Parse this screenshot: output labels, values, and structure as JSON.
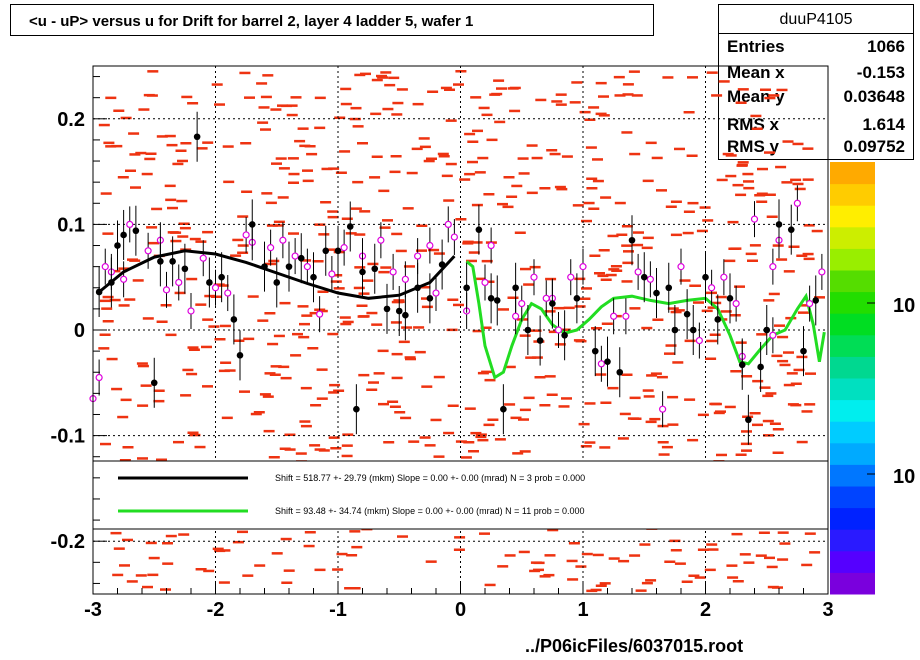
{
  "title": "<u - uP>       versus   u for Drift for barrel 2, layer 4 ladder 5, wafer 1",
  "footer": "../P06icFiles/6037015.root",
  "stats": {
    "name": "duuP4105",
    "rows": [
      {
        "key": "Entries",
        "value": "1066"
      },
      {
        "key": "Mean x",
        "value": "-0.153"
      },
      {
        "key": "Mean y",
        "value": "0.03648"
      },
      {
        "key": "RMS x",
        "value": "1.614"
      },
      {
        "key": "RMS y",
        "value": "0.09752"
      }
    ]
  },
  "colors": {
    "scatter": "#ee3311",
    "profile": "#000000",
    "open_marker": "#dd00dd",
    "fit_left": "#000000",
    "fit_right": "#22dd22",
    "grid": "#000000"
  },
  "chart_data": {
    "type": "scatter",
    "xlim": [
      -3,
      3
    ],
    "ylim": [
      -0.25,
      0.25
    ],
    "x_ticks": [
      "-3",
      "-2",
      "-1",
      "0",
      "1",
      "2",
      "3"
    ],
    "y_ticks": [
      "-0.2",
      "-0.1",
      "0",
      "0.1",
      "0.2"
    ],
    "grid": true,
    "colorbar_labels": [
      "10",
      "10"
    ],
    "legend": [
      {
        "color": "#000000",
        "text": "Shift =   518.77 +- 29.79 (mkm) Slope =     0.00 +- 0.00 (mrad)  N = 3 prob = 0.000"
      },
      {
        "color": "#22dd22",
        "text": "Shift =    93.48 +- 34.74 (mkm) Slope =     0.00 +- 0.00 (mrad)  N = 11 prob = 0.000"
      }
    ],
    "profile": [
      {
        "x": -2.95,
        "y": 0.036
      },
      {
        "x": -2.85,
        "y": 0.045
      },
      {
        "x": -2.8,
        "y": 0.08
      },
      {
        "x": -2.75,
        "y": 0.09
      },
      {
        "x": -2.65,
        "y": 0.094
      },
      {
        "x": -2.5,
        "y": -0.05
      },
      {
        "x": -2.45,
        "y": 0.065
      },
      {
        "x": -2.35,
        "y": 0.065
      },
      {
        "x": -2.25,
        "y": 0.058
      },
      {
        "x": -2.15,
        "y": 0.183
      },
      {
        "x": -2.05,
        "y": 0.045
      },
      {
        "x": -1.95,
        "y": 0.05
      },
      {
        "x": -1.85,
        "y": 0.01
      },
      {
        "x": -1.8,
        "y": -0.024
      },
      {
        "x": -1.7,
        "y": 0.1
      },
      {
        "x": -1.6,
        "y": 0.06
      },
      {
        "x": -1.5,
        "y": 0.045
      },
      {
        "x": -1.4,
        "y": 0.06
      },
      {
        "x": -1.3,
        "y": 0.068
      },
      {
        "x": -1.2,
        "y": 0.05
      },
      {
        "x": -1.1,
        "y": 0.075
      },
      {
        "x": -1.0,
        "y": 0.075
      },
      {
        "x": -0.9,
        "y": 0.098
      },
      {
        "x": -0.85,
        "y": -0.075
      },
      {
        "x": -0.8,
        "y": 0.055
      },
      {
        "x": -0.7,
        "y": 0.058
      },
      {
        "x": -0.6,
        "y": 0.02
      },
      {
        "x": -0.5,
        "y": 0.018
      },
      {
        "x": -0.45,
        "y": 0.014
      },
      {
        "x": -0.35,
        "y": 0.04
      },
      {
        "x": -0.25,
        "y": 0.03
      },
      {
        "x": -0.15,
        "y": 0.062
      },
      {
        "x": 0.05,
        "y": 0.04
      },
      {
        "x": 0.15,
        "y": 0.095
      },
      {
        "x": 0.25,
        "y": 0.03
      },
      {
        "x": 0.3,
        "y": 0.028
      },
      {
        "x": 0.35,
        "y": -0.075
      },
      {
        "x": 0.45,
        "y": 0.04
      },
      {
        "x": 0.55,
        "y": 0.0
      },
      {
        "x": 0.65,
        "y": -0.01
      },
      {
        "x": 0.75,
        "y": 0.025
      },
      {
        "x": 0.85,
        "y": -0.005
      },
      {
        "x": 0.95,
        "y": 0.03
      },
      {
        "x": 1.1,
        "y": -0.02
      },
      {
        "x": 1.2,
        "y": -0.03
      },
      {
        "x": 1.3,
        "y": -0.04
      },
      {
        "x": 1.4,
        "y": 0.085
      },
      {
        "x": 1.5,
        "y": 0.05
      },
      {
        "x": 1.6,
        "y": 0.035
      },
      {
        "x": 1.7,
        "y": 0.04
      },
      {
        "x": 1.75,
        "y": 0.0
      },
      {
        "x": 1.85,
        "y": 0.015
      },
      {
        "x": 1.9,
        "y": 0.0
      },
      {
        "x": 2.0,
        "y": 0.05
      },
      {
        "x": 2.1,
        "y": 0.01
      },
      {
        "x": 2.2,
        "y": 0.03
      },
      {
        "x": 2.3,
        "y": -0.033
      },
      {
        "x": 2.35,
        "y": -0.085
      },
      {
        "x": 2.45,
        "y": -0.035
      },
      {
        "x": 2.5,
        "y": 0.0
      },
      {
        "x": 2.6,
        "y": 0.1
      },
      {
        "x": 2.7,
        "y": 0.095
      },
      {
        "x": 2.8,
        "y": -0.02
      },
      {
        "x": 2.9,
        "y": 0.028
      }
    ],
    "open_points": [
      {
        "x": -3.0,
        "y": -0.065
      },
      {
        "x": -2.95,
        "y": -0.045
      },
      {
        "x": -2.9,
        "y": 0.06
      },
      {
        "x": -2.85,
        "y": 0.055
      },
      {
        "x": -2.75,
        "y": 0.048
      },
      {
        "x": -2.7,
        "y": 0.1
      },
      {
        "x": -2.55,
        "y": 0.075
      },
      {
        "x": -2.45,
        "y": 0.085
      },
      {
        "x": -2.4,
        "y": 0.038
      },
      {
        "x": -2.3,
        "y": 0.045
      },
      {
        "x": -2.2,
        "y": 0.018
      },
      {
        "x": -2.1,
        "y": 0.068
      },
      {
        "x": -2.0,
        "y": 0.04
      },
      {
        "x": -1.9,
        "y": 0.035
      },
      {
        "x": -1.75,
        "y": 0.09
      },
      {
        "x": -1.7,
        "y": 0.083
      },
      {
        "x": -1.55,
        "y": 0.078
      },
      {
        "x": -1.45,
        "y": 0.085
      },
      {
        "x": -1.35,
        "y": 0.07
      },
      {
        "x": -1.25,
        "y": 0.06
      },
      {
        "x": -1.15,
        "y": 0.015
      },
      {
        "x": -1.05,
        "y": 0.053
      },
      {
        "x": -0.95,
        "y": 0.078
      },
      {
        "x": -0.8,
        "y": 0.07
      },
      {
        "x": -0.65,
        "y": 0.085
      },
      {
        "x": -0.55,
        "y": 0.055
      },
      {
        "x": -0.45,
        "y": 0.048
      },
      {
        "x": -0.35,
        "y": 0.07
      },
      {
        "x": -0.25,
        "y": 0.08
      },
      {
        "x": -0.2,
        "y": 0.035
      },
      {
        "x": -0.1,
        "y": 0.1
      },
      {
        "x": -0.05,
        "y": 0.088
      },
      {
        "x": 0.05,
        "y": 0.018
      },
      {
        "x": 0.2,
        "y": 0.045
      },
      {
        "x": 0.25,
        "y": 0.08
      },
      {
        "x": 0.45,
        "y": 0.013
      },
      {
        "x": 0.5,
        "y": 0.025
      },
      {
        "x": 0.6,
        "y": 0.05
      },
      {
        "x": 0.7,
        "y": 0.03
      },
      {
        "x": 0.75,
        "y": 0.03
      },
      {
        "x": 0.8,
        "y": 0.0
      },
      {
        "x": 0.9,
        "y": 0.05
      },
      {
        "x": 1.0,
        "y": 0.06
      },
      {
        "x": 1.15,
        "y": -0.032
      },
      {
        "x": 1.25,
        "y": 0.013
      },
      {
        "x": 1.35,
        "y": 0.013
      },
      {
        "x": 1.45,
        "y": 0.055
      },
      {
        "x": 1.55,
        "y": 0.048
      },
      {
        "x": 1.65,
        "y": -0.075
      },
      {
        "x": 1.8,
        "y": 0.06
      },
      {
        "x": 1.95,
        "y": -0.01
      },
      {
        "x": 2.05,
        "y": 0.04
      },
      {
        "x": 2.15,
        "y": 0.05
      },
      {
        "x": 2.25,
        "y": 0.025
      },
      {
        "x": 2.3,
        "y": -0.025
      },
      {
        "x": 2.4,
        "y": 0.105
      },
      {
        "x": 2.55,
        "y": -0.005
      },
      {
        "x": 2.55,
        "y": 0.06
      },
      {
        "x": 2.6,
        "y": 0.085
      },
      {
        "x": 2.75,
        "y": 0.12
      },
      {
        "x": 2.85,
        "y": 0.025
      },
      {
        "x": 2.95,
        "y": 0.055
      }
    ],
    "fit_left": [
      {
        "x": -2.95,
        "y": 0.036
      },
      {
        "x": -2.75,
        "y": 0.055
      },
      {
        "x": -2.5,
        "y": 0.069
      },
      {
        "x": -2.25,
        "y": 0.075
      },
      {
        "x": -2.0,
        "y": 0.072
      },
      {
        "x": -1.75,
        "y": 0.064
      },
      {
        "x": -1.5,
        "y": 0.054
      },
      {
        "x": -1.25,
        "y": 0.044
      },
      {
        "x": -1.0,
        "y": 0.035
      },
      {
        "x": -0.75,
        "y": 0.03
      },
      {
        "x": -0.5,
        "y": 0.033
      },
      {
        "x": -0.25,
        "y": 0.045
      },
      {
        "x": -0.05,
        "y": 0.07
      }
    ],
    "fit_right": [
      {
        "x": 0.05,
        "y": 0.065
      },
      {
        "x": 0.1,
        "y": 0.06
      },
      {
        "x": 0.15,
        "y": 0.025
      },
      {
        "x": 0.2,
        "y": -0.015
      },
      {
        "x": 0.28,
        "y": -0.045
      },
      {
        "x": 0.35,
        "y": -0.04
      },
      {
        "x": 0.42,
        "y": -0.015
      },
      {
        "x": 0.5,
        "y": 0.01
      },
      {
        "x": 0.58,
        "y": 0.025
      },
      {
        "x": 0.66,
        "y": 0.02
      },
      {
        "x": 0.75,
        "y": 0.005
      },
      {
        "x": 0.85,
        "y": -0.003
      },
      {
        "x": 0.95,
        "y": 0.0
      },
      {
        "x": 1.05,
        "y": 0.01
      },
      {
        "x": 1.15,
        "y": 0.022
      },
      {
        "x": 1.25,
        "y": 0.03
      },
      {
        "x": 1.4,
        "y": 0.032
      },
      {
        "x": 1.55,
        "y": 0.028
      },
      {
        "x": 1.7,
        "y": 0.025
      },
      {
        "x": 1.85,
        "y": 0.028
      },
      {
        "x": 2.0,
        "y": 0.03
      },
      {
        "x": 2.1,
        "y": 0.02
      },
      {
        "x": 2.2,
        "y": -0.005
      },
      {
        "x": 2.28,
        "y": -0.03
      },
      {
        "x": 2.35,
        "y": -0.032
      },
      {
        "x": 2.45,
        "y": -0.018
      },
      {
        "x": 2.55,
        "y": -0.005
      },
      {
        "x": 2.65,
        "y": 0.0
      },
      {
        "x": 2.75,
        "y": 0.02
      },
      {
        "x": 2.82,
        "y": 0.032
      },
      {
        "x": 2.88,
        "y": 0.005
      },
      {
        "x": 2.93,
        "y": -0.03
      },
      {
        "x": 2.97,
        "y": -0.002
      }
    ]
  }
}
